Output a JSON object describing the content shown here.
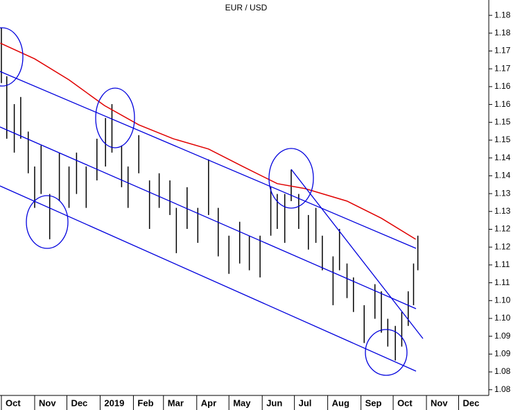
{
  "chart_data": {
    "type": "ohlc",
    "title": "EUR / USD",
    "color": "#000000",
    "x": [
      0,
      5,
      12,
      18,
      25,
      31,
      37,
      45,
      54,
      63,
      70,
      79,
      89,
      97,
      103,
      112,
      118,
      128,
      138,
      147,
      157,
      163,
      173,
      183,
      193,
      202,
      212,
      222,
      231,
      241,
      251,
      257,
      264,
      270,
      277,
      286,
      293,
      299,
      309,
      315,
      322,
      328,
      338,
      348,
      354,
      360,
      367,
      373,
      379,
      384,
      388
    ],
    "high": [
      1.179,
      1.1654,
      1.1576,
      1.1596,
      1.1499,
      1.1401,
      1.146,
      1.1324,
      1.144,
      1.1401,
      1.144,
      1.1401,
      1.1479,
      1.1537,
      1.1576,
      1.146,
      1.1401,
      1.1489,
      1.1362,
      1.1382,
      1.1362,
      1.1285,
      1.1343,
      1.1285,
      1.1421,
      1.1285,
      1.1207,
      1.1246,
      1.1207,
      1.1207,
      1.1343,
      1.1324,
      1.1324,
      1.1392,
      1.1324,
      1.1265,
      1.1285,
      1.1207,
      1.1149,
      1.1226,
      1.1129,
      1.109,
      1.1012,
      1.1071,
      1.1051,
      1.0974,
      1.0954,
      1.0993,
      1.1051,
      1.1129,
      1.1207
    ],
    "low": [
      1.1635,
      1.1479,
      1.144,
      1.1479,
      1.1382,
      1.1285,
      1.1324,
      1.1197,
      1.1304,
      1.1285,
      1.1324,
      1.1285,
      1.1362,
      1.1401,
      1.144,
      1.1343,
      1.1285,
      1.1382,
      1.1226,
      1.1285,
      1.1265,
      1.1158,
      1.1226,
      1.1187,
      1.1265,
      1.1149,
      1.11,
      1.1129,
      1.111,
      1.109,
      1.1207,
      1.1226,
      1.1187,
      1.1304,
      1.1226,
      1.1168,
      1.1187,
      1.111,
      1.1012,
      1.111,
      1.1032,
      1.0993,
      1.0906,
      1.0974,
      1.0935,
      1.0896,
      1.0857,
      1.0896,
      1.0954,
      1.1012,
      1.111
    ],
    "moving_average": {
      "color": "#e00000",
      "x": [
        -1,
        31,
        63,
        96,
        128,
        160,
        193,
        225,
        257,
        283,
        322,
        354,
        386
      ],
      "values": [
        1.1747,
        1.1703,
        1.1644,
        1.1572,
        1.1518,
        1.1479,
        1.145,
        1.1401,
        1.1353,
        1.1339,
        1.1304,
        1.1256,
        1.1197
      ]
    },
    "xlim": [
      -1.3,
      454.1
    ],
    "xticks": [
      {
        "value": 0,
        "label": "Oct"
      },
      {
        "value": 31,
        "label": "Nov"
      },
      {
        "value": 61,
        "label": "Dec"
      },
      {
        "value": 92,
        "label": "2019"
      },
      {
        "value": 123,
        "label": "Feb"
      },
      {
        "value": 151,
        "label": "Mar"
      },
      {
        "value": 182,
        "label": "Apr"
      },
      {
        "value": 212,
        "label": "May"
      },
      {
        "value": 243,
        "label": "Jun"
      },
      {
        "value": 273,
        "label": "Jul"
      },
      {
        "value": 304,
        "label": "Aug"
      },
      {
        "value": 335,
        "label": "Sep"
      },
      {
        "value": 365,
        "label": "Oct"
      },
      {
        "value": 396,
        "label": "Nov"
      },
      {
        "value": 426,
        "label": "Dec"
      }
    ],
    "ylim": [
      1.0759,
      1.1868
    ],
    "yticks": [
      {
        "value": 1.0775,
        "label": "1.08"
      },
      {
        "value": 1.0825,
        "label": "1.08"
      },
      {
        "value": 1.0875,
        "label": "1.09"
      },
      {
        "value": 1.0925,
        "label": "1.09"
      },
      {
        "value": 1.0975,
        "label": "1.10"
      },
      {
        "value": 1.1025,
        "label": "1.10"
      },
      {
        "value": 1.1075,
        "label": "1.11"
      },
      {
        "value": 1.1125,
        "label": "1.11"
      },
      {
        "value": 1.1175,
        "label": "1.12"
      },
      {
        "value": 1.1225,
        "label": "1.12"
      },
      {
        "value": 1.1275,
        "label": "1.13"
      },
      {
        "value": 1.1325,
        "label": "1.13"
      },
      {
        "value": 1.1375,
        "label": "1.14"
      },
      {
        "value": 1.1425,
        "label": "1.14"
      },
      {
        "value": 1.1475,
        "label": "1.15"
      },
      {
        "value": 1.1525,
        "label": "1.15"
      },
      {
        "value": 1.1575,
        "label": "1.16"
      },
      {
        "value": 1.1625,
        "label": "1.16"
      },
      {
        "value": 1.1675,
        "label": "1.17"
      },
      {
        "value": 1.1725,
        "label": "1.17"
      },
      {
        "value": 1.1775,
        "label": "1.18"
      },
      {
        "value": 1.1825,
        "label": "1.18"
      }
    ]
  }
}
